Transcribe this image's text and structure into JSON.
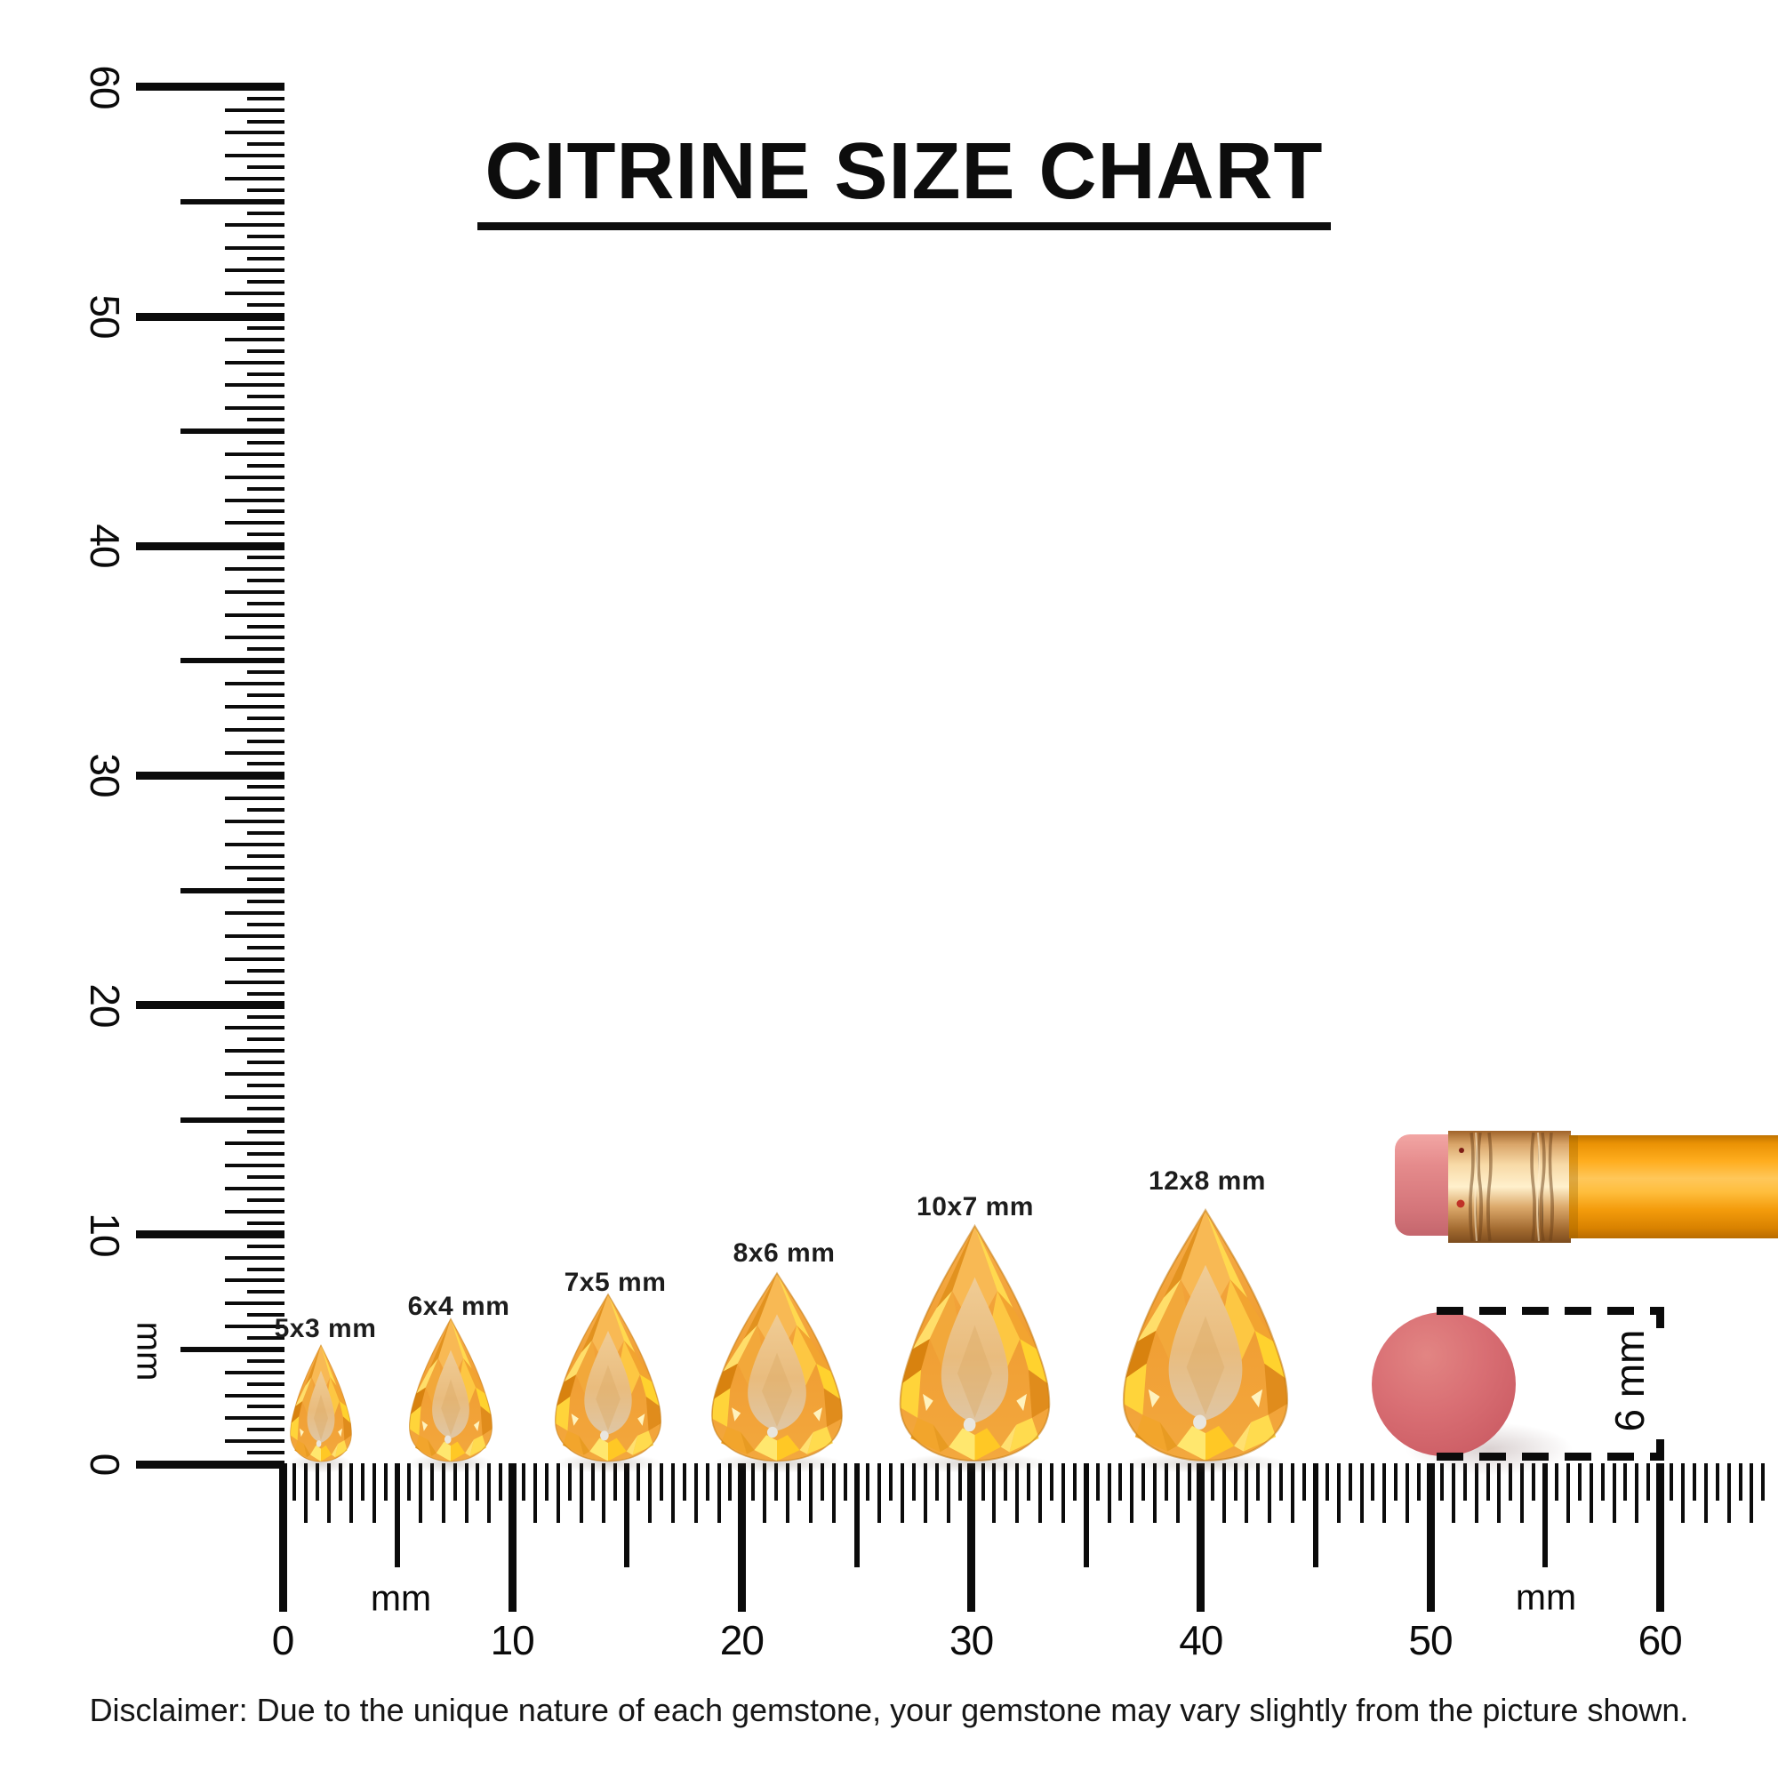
{
  "title": "CITRINE SIZE CHART",
  "left_ruler": {
    "unit": "mm",
    "tick_labels": [
      "60",
      "50",
      "40",
      "30",
      "20",
      "10",
      "0"
    ]
  },
  "bottom_ruler": {
    "unit_left": "mm",
    "unit_right": "mm",
    "tick_labels": [
      "0",
      "10",
      "20",
      "30",
      "40",
      "50",
      "60"
    ]
  },
  "gems": [
    {
      "label": "5x3 mm",
      "width_mm": 3,
      "length_mm": 5
    },
    {
      "label": "6x4 mm",
      "width_mm": 4,
      "length_mm": 6
    },
    {
      "label": "7x5 mm",
      "width_mm": 5,
      "length_mm": 7
    },
    {
      "label": "8x6 mm",
      "width_mm": 6,
      "length_mm": 8
    },
    {
      "label": "10x7 mm",
      "width_mm": 7,
      "length_mm": 10
    },
    {
      "label": "12x8 mm",
      "width_mm": 8,
      "length_mm": 12
    }
  ],
  "reference_objects": {
    "pencil": "pencil with pink eraser",
    "eraser_dot_diameter_label": "6 mm"
  },
  "disclaimer": "Disclaimer: Due to the unique nature of each gemstone, your gemstone may vary slightly from the picture shown.",
  "colors": {
    "ink": "#0b0b0b",
    "citrine_primary": "#F2A437",
    "citrine_flash": "#FFD42C",
    "citrine_table": "#EBC48D",
    "pencil_body": "#FFA81E",
    "pencil_ferrule": "#D9A569",
    "eraser_pink": "#E58B8C",
    "dot_pink": "#D66A6E"
  }
}
